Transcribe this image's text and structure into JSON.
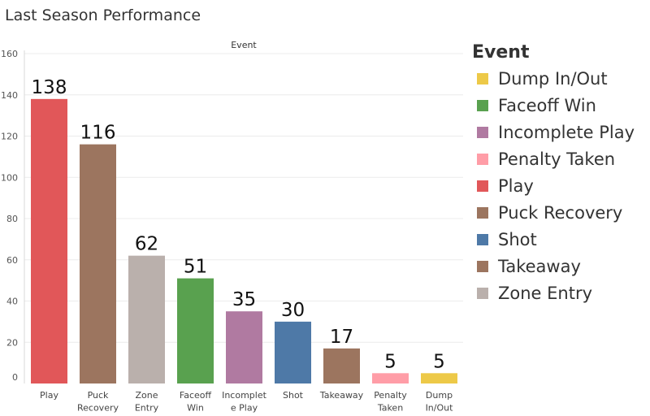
{
  "chart_data": {
    "type": "bar",
    "title": "Last Season Performance",
    "column_header": "Event",
    "categories": [
      [
        "Play"
      ],
      [
        "Puck",
        "Recovery"
      ],
      [
        "Zone",
        "Entry"
      ],
      [
        "Faceoff",
        "Win"
      ],
      [
        "Incomplet",
        "e Play"
      ],
      [
        "Shot"
      ],
      [
        "Takeaway"
      ],
      [
        "Penalty",
        "Taken"
      ],
      [
        "Dump",
        "In/Out"
      ]
    ],
    "values": [
      138,
      116,
      62,
      51,
      35,
      30,
      17,
      5,
      5
    ],
    "bar_colors": [
      "#e15759",
      "#9c755f",
      "#bab0ac",
      "#59a14f",
      "#b07aa1",
      "#4e79a7",
      "#9c755f",
      "#ff9da7",
      "#edc948"
    ],
    "ylim": [
      0,
      160
    ],
    "yticks": [
      0,
      20,
      40,
      60,
      80,
      100,
      120,
      140,
      160
    ],
    "grid": true,
    "legend": {
      "title": "Event",
      "position": "right",
      "items": [
        {
          "label": "Dump In/Out",
          "color": "#edc948"
        },
        {
          "label": "Faceoff Win",
          "color": "#59a14f"
        },
        {
          "label": "Incomplete Play",
          "color": "#b07aa1"
        },
        {
          "label": "Penalty Taken",
          "color": "#ff9da7"
        },
        {
          "label": "Play",
          "color": "#e15759"
        },
        {
          "label": "Puck Recovery",
          "color": "#9c755f"
        },
        {
          "label": "Shot",
          "color": "#4e79a7"
        },
        {
          "label": "Takeaway",
          "color": "#9c755f"
        },
        {
          "label": "Zone Entry",
          "color": "#bab0ac"
        }
      ]
    }
  }
}
